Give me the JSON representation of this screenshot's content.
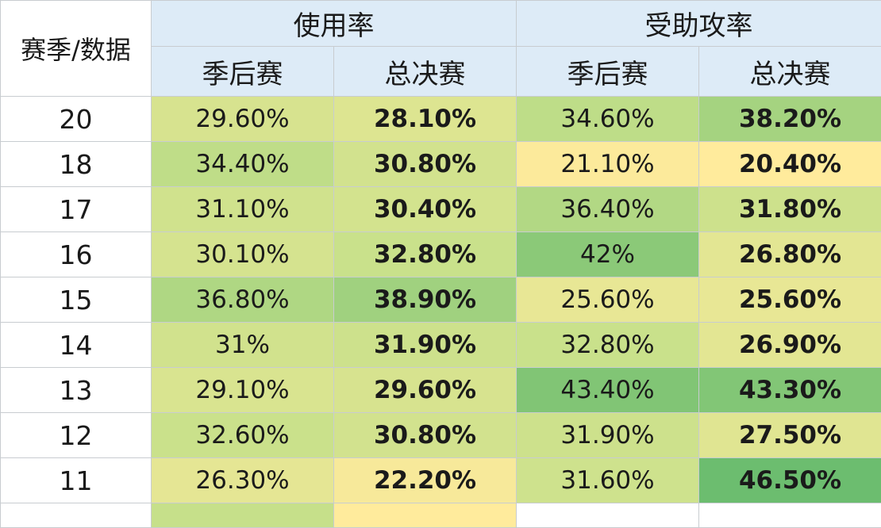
{
  "header": {
    "corner": "赛季/数据",
    "groups": [
      "使用率",
      "受助攻率"
    ],
    "sub": [
      "季后赛",
      "总决赛",
      "季后赛",
      "总决赛"
    ]
  },
  "chart_data": {
    "type": "table",
    "columns": [
      "赛季/数据",
      "使用率·季后赛",
      "使用率·总决赛",
      "受助攻率·季后赛",
      "受助攻率·总决赛"
    ],
    "rows": [
      {
        "season": "20",
        "values": [
          "29.60%",
          "28.10%",
          "34.60%",
          "38.20%"
        ]
      },
      {
        "season": "18",
        "values": [
          "34.40%",
          "30.80%",
          "21.10%",
          "20.40%"
        ]
      },
      {
        "season": "17",
        "values": [
          "31.10%",
          "30.40%",
          "36.40%",
          "31.80%"
        ]
      },
      {
        "season": "16",
        "values": [
          "30.10%",
          "32.80%",
          "42%",
          "26.80%"
        ]
      },
      {
        "season": "15",
        "values": [
          "36.80%",
          "38.90%",
          "25.60%",
          "25.60%"
        ]
      },
      {
        "season": "14",
        "values": [
          "31%",
          "31.90%",
          "32.80%",
          "26.90%"
        ]
      },
      {
        "season": "13",
        "values": [
          "29.10%",
          "29.60%",
          "43.40%",
          "43.30%"
        ]
      },
      {
        "season": "12",
        "values": [
          "32.60%",
          "30.80%",
          "31.90%",
          "27.50%"
        ]
      },
      {
        "season": "11",
        "values": [
          "26.30%",
          "22.20%",
          "31.60%",
          "46.50%"
        ]
      }
    ],
    "heatmap_colors": {
      "low": "#ffeb9c",
      "mid": "#c6e08a",
      "high": "#6cbd6f"
    }
  }
}
